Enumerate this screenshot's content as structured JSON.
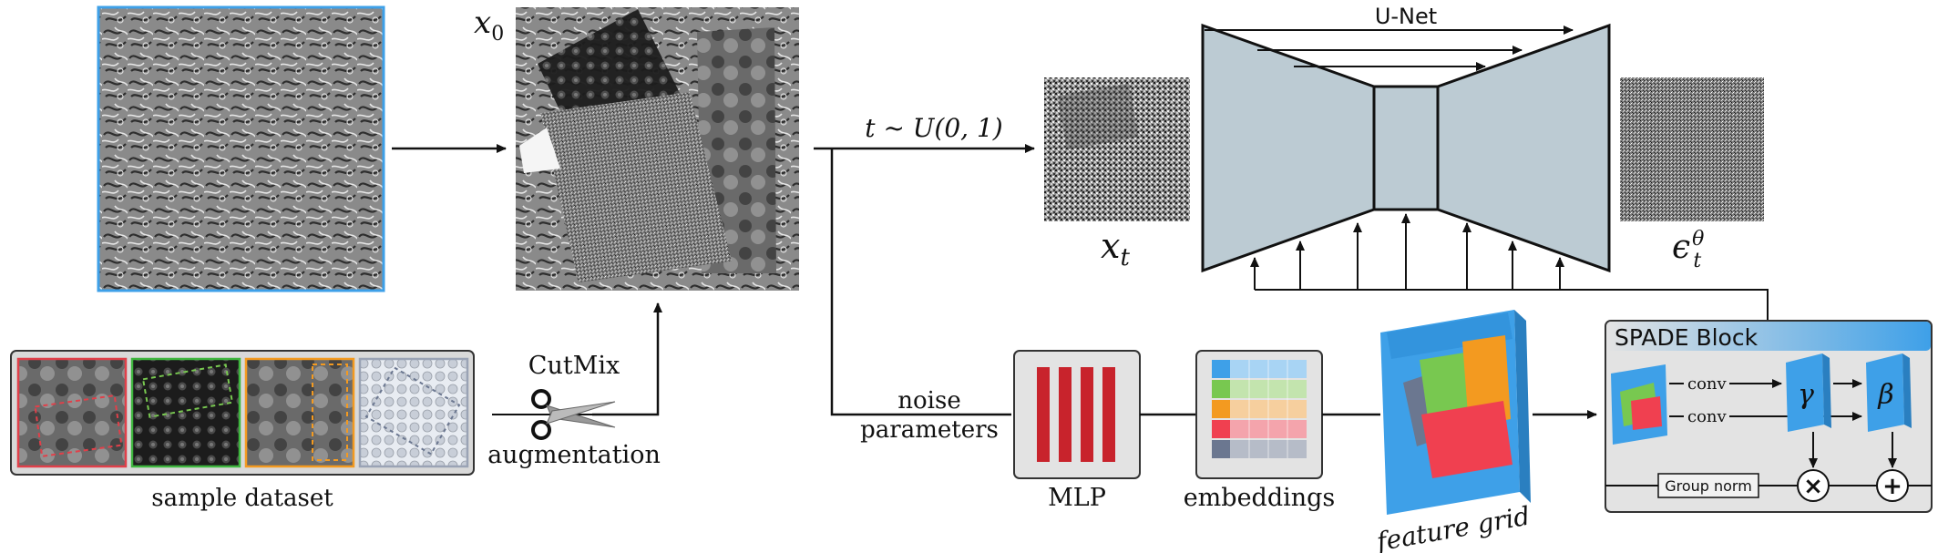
{
  "labels": {
    "x0": "x",
    "x0_sub": "0",
    "xt": "x",
    "xt_sub": "t",
    "eps": "ϵ",
    "eps_sub": "t",
    "eps_sup": "θ",
    "unet": "U-Net",
    "timestep": "t ~ U(0, 1)",
    "cutmix": "CutMix",
    "augmentation": "augmentation",
    "sample_dataset": "sample dataset",
    "noise": "noise",
    "parameters": "parameters",
    "mlp": "MLP",
    "embeddings": "embeddings",
    "feature_grid": "feature grid",
    "spade_title": "SPADE Block",
    "conv1": "conv",
    "conv2": "conv",
    "gamma": "γ",
    "beta": "β",
    "group_norm": "Group norm",
    "multiply": "×",
    "add": "+"
  },
  "icons": [
    "scissors-icon",
    "arrow-icon"
  ],
  "colors": {
    "unet_fill": "#bccbd3",
    "mlp_bar": "#c8232c",
    "spade_accent": "#3ea0e8",
    "dataset_frames": [
      "#e0404a",
      "#3fb63f",
      "#f39a20",
      "#9aa3b5"
    ],
    "embedding_rows": [
      "#3ea0e8",
      "#78c850",
      "#f39a20",
      "#f04050",
      "#6b7790"
    ],
    "grid_colors": [
      "#3ea0e8",
      "#78c850",
      "#f39a20",
      "#f04050"
    ]
  }
}
